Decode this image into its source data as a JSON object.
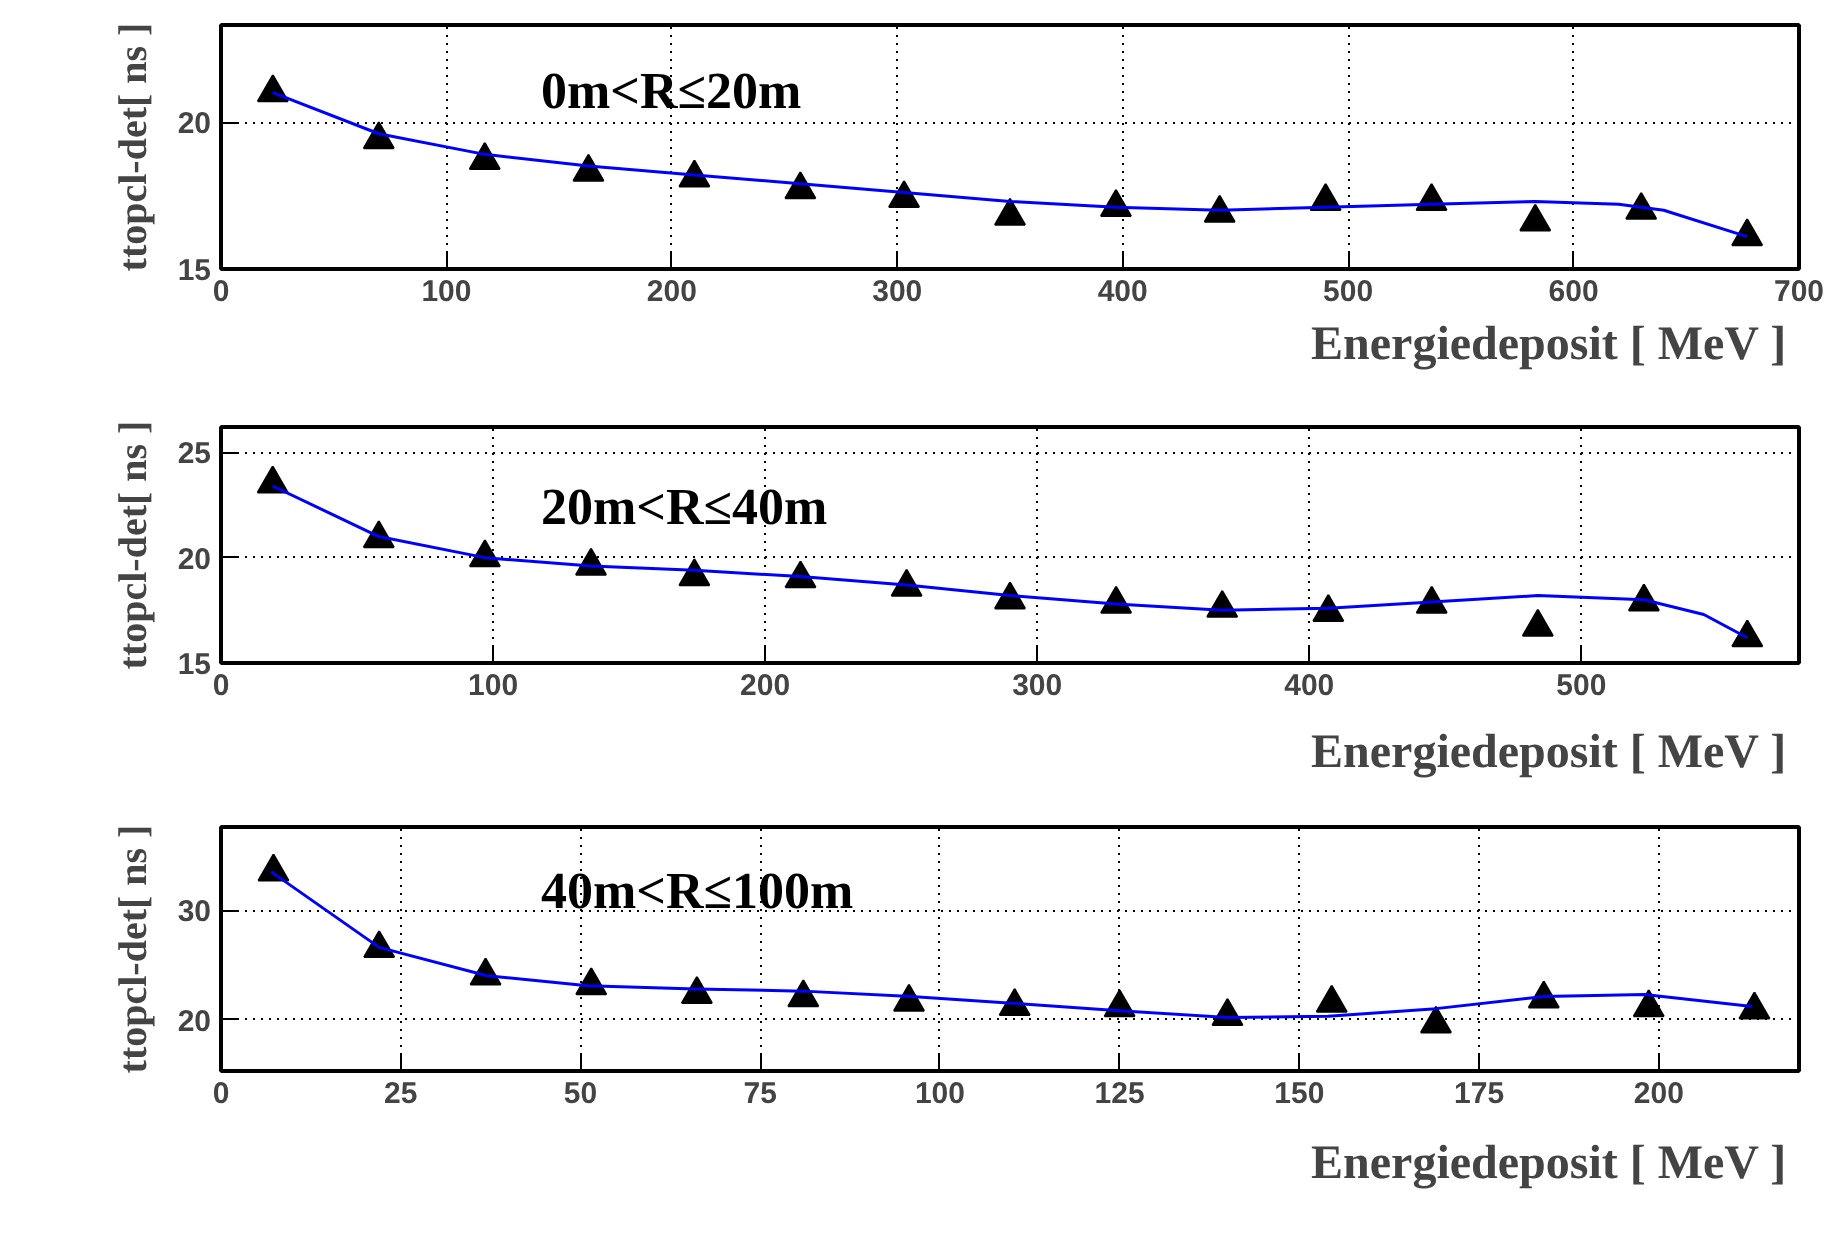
{
  "chart_data": [
    {
      "type": "scatter",
      "title": "0m<R≤20m",
      "xlabel": "Energiedeposit  [ MeV ]",
      "ylabel": "ttopcl-det[ ns ]",
      "xlim": [
        0,
        700
      ],
      "ylim": [
        15,
        23.3
      ],
      "xticks": [
        0,
        100,
        200,
        300,
        400,
        500,
        600,
        700
      ],
      "yticks": [
        15,
        20
      ],
      "grid": true,
      "series": [
        {
          "type": "scatter",
          "marker": "triangle",
          "color": "#000000",
          "x": [
            23,
            70,
            117,
            163,
            210,
            257,
            303,
            350,
            397,
            443,
            490,
            537,
            583,
            630,
            677
          ],
          "values": [
            21.0,
            19.4,
            18.7,
            18.3,
            18.1,
            17.7,
            17.4,
            16.8,
            17.1,
            16.9,
            17.3,
            17.3,
            16.6,
            17.0,
            16.1
          ]
        },
        {
          "type": "line",
          "marker": "none",
          "line_style": "solid",
          "color": "#0000ff",
          "x": [
            23,
            70,
            117,
            163,
            210,
            257,
            303,
            350,
            397,
            443,
            490,
            537,
            583,
            620,
            640,
            677
          ],
          "values": [
            21.0,
            19.6,
            18.9,
            18.5,
            18.2,
            17.9,
            17.6,
            17.3,
            17.1,
            17.0,
            17.1,
            17.2,
            17.3,
            17.2,
            17.0,
            16.1
          ]
        }
      ]
    },
    {
      "type": "scatter",
      "title": "20m<R≤40m",
      "xlabel": "Energiedeposit  [ MeV ]",
      "ylabel": "ttopcl-det[ ns ]",
      "xlim": [
        0,
        580
      ],
      "ylim": [
        15,
        26.2
      ],
      "xticks": [
        0,
        100,
        200,
        300,
        400,
        500
      ],
      "yticks": [
        15,
        20,
        25
      ],
      "grid": true,
      "series": [
        {
          "type": "scatter",
          "marker": "triangle",
          "color": "#000000",
          "x": [
            19,
            58,
            97,
            136,
            174,
            213,
            252,
            290,
            329,
            368,
            407,
            445,
            484,
            523,
            561
          ],
          "values": [
            23.5,
            20.9,
            20.0,
            19.6,
            19.1,
            19.0,
            18.6,
            18.0,
            17.8,
            17.6,
            17.4,
            17.8,
            16.7,
            17.9,
            16.2
          ]
        },
        {
          "type": "line",
          "marker": "none",
          "line_style": "solid",
          "color": "#0000ff",
          "x": [
            19,
            58,
            97,
            136,
            174,
            213,
            252,
            290,
            329,
            368,
            407,
            445,
            484,
            523,
            545,
            561
          ],
          "values": [
            23.4,
            21.0,
            20.0,
            19.6,
            19.4,
            19.1,
            18.7,
            18.2,
            17.8,
            17.5,
            17.6,
            17.9,
            18.2,
            18.0,
            17.3,
            16.2
          ]
        }
      ]
    },
    {
      "type": "scatter",
      "title": "40m<R≤100m",
      "xlabel": "Energiedeposit  [ MeV ]",
      "ylabel": "ttopcl-det[ ns ]",
      "xlim": [
        0,
        219.5
      ],
      "ylim": [
        15.3,
        37.6
      ],
      "xticks": [
        0,
        25,
        50,
        75,
        100,
        125,
        150,
        175,
        200
      ],
      "yticks": [
        20,
        30
      ],
      "grid": true,
      "series": [
        {
          "type": "scatter",
          "marker": "triangle",
          "color": "#000000",
          "x": [
            7.3,
            22,
            36.8,
            51.5,
            66.2,
            81,
            95.7,
            110.4,
            125,
            140,
            154.5,
            169,
            184,
            198.6,
            213.3
          ],
          "values": [
            33.5,
            26.5,
            24.0,
            23.1,
            22.3,
            22.0,
            21.6,
            21.2,
            21.1,
            20.3,
            21.5,
            19.6,
            21.9,
            21.1,
            20.9
          ]
        },
        {
          "type": "line",
          "marker": "none",
          "line_style": "solid",
          "color": "#0000ff",
          "x": [
            7,
            22,
            37,
            51,
            66,
            81,
            96,
            110,
            125,
            140,
            154,
            169,
            184,
            198,
            213
          ],
          "values": [
            33.5,
            26.6,
            24.0,
            23.1,
            22.8,
            22.6,
            22.1,
            21.5,
            20.8,
            20.2,
            20.3,
            21.0,
            22.1,
            22.3,
            21.2
          ]
        }
      ]
    }
  ]
}
